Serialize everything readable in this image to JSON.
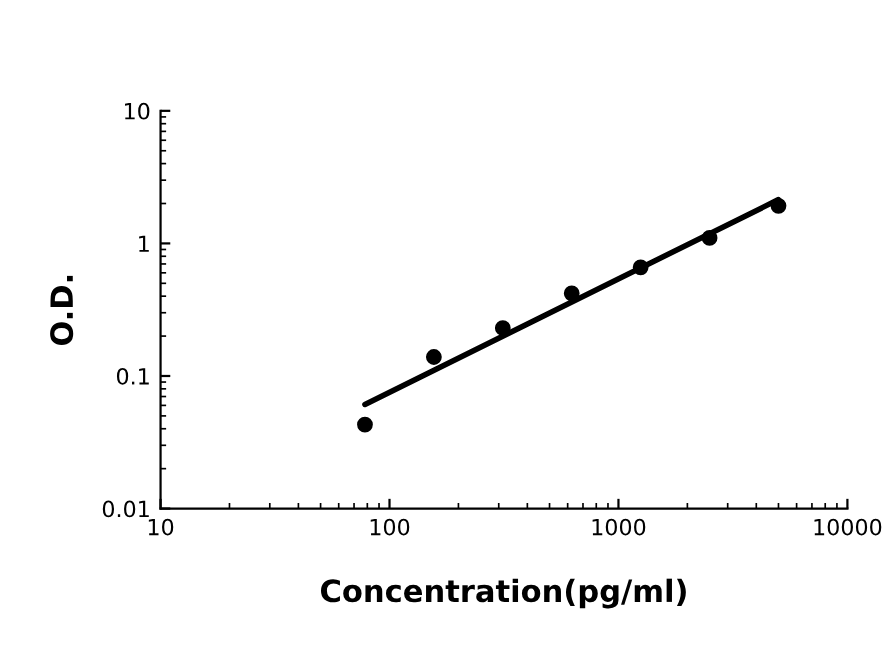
{
  "chart_data": {
    "type": "scatter",
    "xlabel": "Concentration(pg/ml)",
    "ylabel": "O.D.",
    "log": "xy",
    "grid": false,
    "legend": false,
    "xlim": [
      10,
      10000
    ],
    "xticks": [
      10,
      100,
      1000,
      10000
    ],
    "ylim": [
      0.01,
      10
    ],
    "yticks": [
      0.01,
      0.1,
      1,
      10
    ],
    "series": [
      {
        "color": "#000000",
        "marker": "circle",
        "x": [
          78.125,
          156.25,
          312.5,
          625,
          1250,
          2500,
          5000
        ],
        "values": [
          0.043,
          0.139,
          0.23,
          0.42,
          0.66,
          1.1,
          1.92
        ]
      },
      {
        "type": "line",
        "color": "#000000",
        "line_style": "solid",
        "marker": "none",
        "x": [
          78.125,
          5000
        ],
        "values": [
          0.061,
          2.14
        ]
      }
    ]
  }
}
